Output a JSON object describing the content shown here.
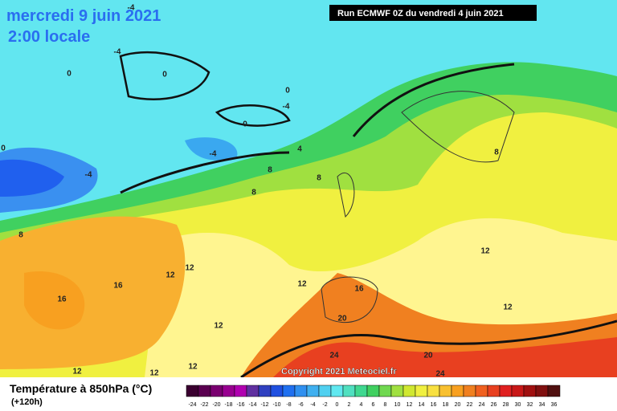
{
  "header": {
    "date": "mercredi 9 juin 2021",
    "time": "2:00 locale",
    "run": "Run ECMWF 0Z du vendredi 4 juin 2021"
  },
  "copyright": "Copyright 2021 Meteociel.fr",
  "legend": {
    "title": "Température à 850hPa (°C)",
    "lead": "(+120h)",
    "ticks": [
      -24,
      -22,
      -20,
      -18,
      -16,
      -14,
      -12,
      -10,
      -8,
      -6,
      -4,
      -2,
      0,
      2,
      4,
      6,
      8,
      10,
      12,
      14,
      16,
      18,
      20,
      22,
      24,
      26,
      28,
      30,
      32,
      34,
      36
    ],
    "colors": [
      "#3a0030",
      "#5a0050",
      "#7a0070",
      "#980090",
      "#b000b0",
      "#6030a0",
      "#3040c0",
      "#2050e0",
      "#2070f0",
      "#3090f0",
      "#40b0f0",
      "#50d0f0",
      "#60e8f0",
      "#50e0c0",
      "#40d890",
      "#40d060",
      "#70d850",
      "#a0e040",
      "#d0e830",
      "#f0f040",
      "#f8e040",
      "#f8c030",
      "#f8a020",
      "#f08020",
      "#f06020",
      "#e84020",
      "#e02020",
      "#c81818",
      "#a01010",
      "#801010",
      "#501010"
    ]
  },
  "contour_labels": [
    -4,
    0,
    0,
    0,
    -4,
    0,
    -4,
    -4,
    0,
    4,
    8,
    8,
    8,
    8,
    12,
    12,
    16,
    16,
    12,
    16,
    20,
    12,
    12,
    12,
    24,
    20,
    12,
    12,
    12,
    8,
    24,
    -4
  ]
}
